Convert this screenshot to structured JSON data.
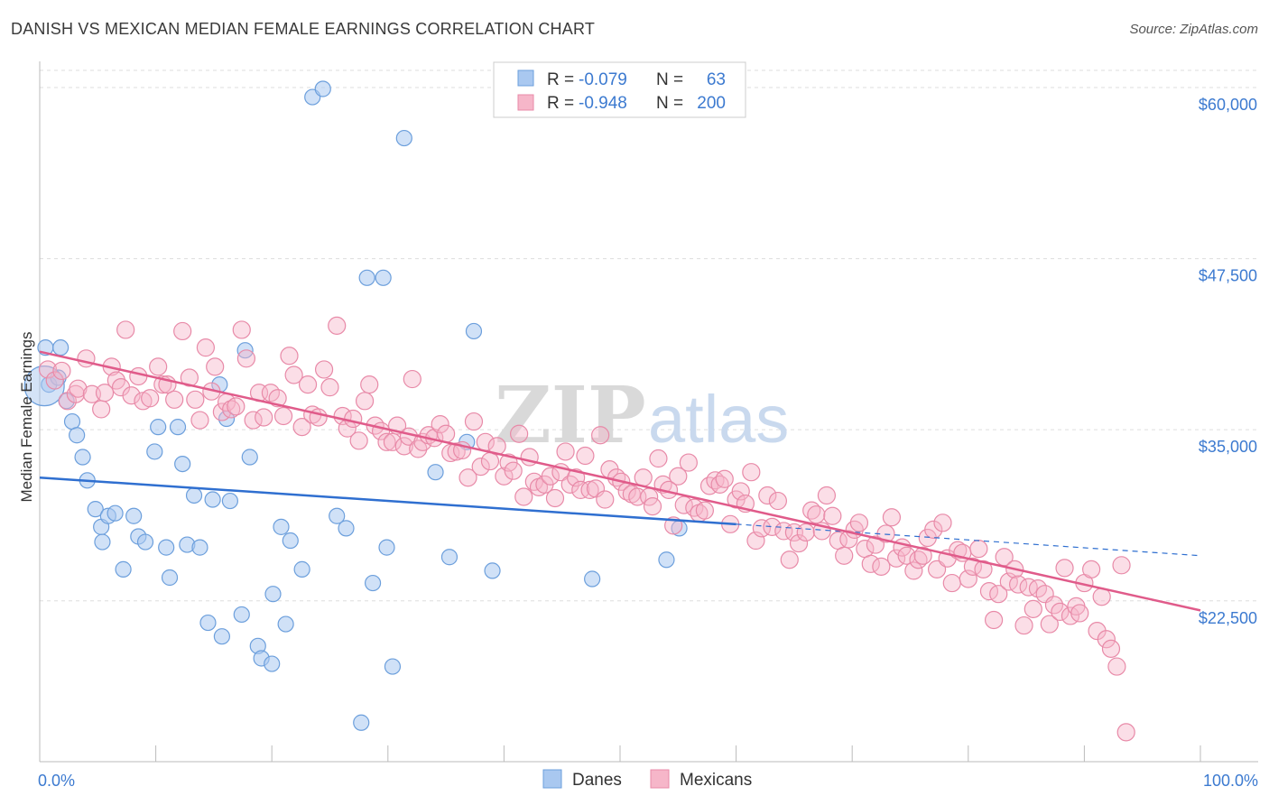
{
  "header": {
    "title": "DANISH VS MEXICAN MEDIAN FEMALE EARNINGS CORRELATION CHART",
    "source": "Source: ZipAtlas.com"
  },
  "watermark": {
    "zip": "ZIP",
    "atlas": "atlas"
  },
  "legend_top": {
    "danes": {
      "r_label": "R =",
      "r_value": "-0.079",
      "n_label": "N =",
      "n_value": "63"
    },
    "mexicans": {
      "r_label": "R =",
      "r_value": "-0.948",
      "n_label": "N =",
      "n_value": "200"
    }
  },
  "legend_bottom": {
    "danes": "Danes",
    "mexicans": "Mexicans"
  },
  "colors": {
    "danes_fill": "#a9c8f0",
    "danes_stroke": "#6c9fdc",
    "danes_line": "#2f6fd0",
    "mexicans_fill": "#f6b6c9",
    "mexicans_stroke": "#e88aa8",
    "mexicans_line": "#e05b8a",
    "tick_text": "#3c7ad0",
    "grid": "#dddddd"
  },
  "chart_data": {
    "type": "scatter",
    "title": "DANISH VS MEXICAN MEDIAN FEMALE EARNINGS CORRELATION CHART",
    "xlabel": "",
    "ylabel": "Median Female Earnings",
    "x_tick_labels": [
      "0.0%",
      "100.0%"
    ],
    "y_tick_labels": [
      "$22,500",
      "$35,000",
      "$47,500",
      "$60,000"
    ],
    "y_ticks": [
      22500,
      35000,
      47500,
      60000
    ],
    "xlim": [
      0,
      100
    ],
    "ylim": [
      10750,
      61250
    ],
    "grid": true,
    "legend_position": "top-center",
    "series": [
      {
        "name": "Danes",
        "trend": {
          "x": [
            0,
            60
          ],
          "y": [
            31500,
            28100
          ],
          "dashed_to": [
            100,
            25800
          ]
        },
        "points": [
          [
            0.5,
            41.0
          ],
          [
            0.8,
            38.3
          ],
          [
            1.8,
            41.0
          ],
          [
            1.6,
            38.8
          ],
          [
            2.3,
            37.1
          ],
          [
            2.8,
            35.6
          ],
          [
            3.2,
            34.6
          ],
          [
            3.7,
            33.0
          ],
          [
            4.1,
            31.3
          ],
          [
            4.8,
            29.2
          ],
          [
            5.3,
            27.9
          ],
          [
            5.4,
            26.8
          ],
          [
            5.9,
            28.7
          ],
          [
            6.5,
            28.9
          ],
          [
            7.2,
            24.8
          ],
          [
            8.1,
            28.7
          ],
          [
            8.5,
            27.2
          ],
          [
            9.1,
            26.8
          ],
          [
            9.9,
            33.4
          ],
          [
            10.2,
            35.2
          ],
          [
            10.9,
            26.4
          ],
          [
            11.2,
            24.2
          ],
          [
            11.9,
            35.2
          ],
          [
            12.3,
            32.5
          ],
          [
            12.7,
            26.6
          ],
          [
            13.3,
            30.2
          ],
          [
            13.8,
            26.4
          ],
          [
            14.5,
            20.9
          ],
          [
            14.9,
            29.9
          ],
          [
            15.5,
            38.3
          ],
          [
            15.7,
            19.9
          ],
          [
            16.1,
            35.8
          ],
          [
            16.4,
            29.8
          ],
          [
            17.4,
            21.5
          ],
          [
            17.7,
            40.8
          ],
          [
            18.1,
            33.0
          ],
          [
            18.8,
            19.2
          ],
          [
            19.1,
            18.3
          ],
          [
            20.0,
            17.9
          ],
          [
            20.1,
            23.0
          ],
          [
            20.8,
            27.9
          ],
          [
            21.2,
            20.8
          ],
          [
            21.6,
            26.9
          ],
          [
            22.6,
            24.8
          ],
          [
            23.5,
            59.3
          ],
          [
            24.4,
            59.9
          ],
          [
            25.6,
            28.7
          ],
          [
            26.4,
            27.8
          ],
          [
            27.7,
            13.6
          ],
          [
            28.2,
            46.1
          ],
          [
            29.6,
            46.1
          ],
          [
            28.7,
            23.8
          ],
          [
            29.9,
            26.4
          ],
          [
            30.4,
            17.7
          ],
          [
            31.4,
            56.3
          ],
          [
            34.1,
            31.9
          ],
          [
            35.3,
            25.7
          ],
          [
            36.8,
            34.1
          ],
          [
            37.4,
            42.2
          ],
          [
            39.0,
            24.7
          ],
          [
            47.6,
            24.1
          ],
          [
            54.0,
            25.5
          ],
          [
            55.1,
            27.8
          ]
        ]
      },
      {
        "name": "Mexicans",
        "trend": {
          "x": [
            0,
            100
          ],
          "y": [
            40700,
            21800
          ]
        },
        "points": [
          [
            0.7,
            39.4
          ],
          [
            1.3,
            38.6
          ],
          [
            1.9,
            39.3
          ],
          [
            2.4,
            37.1
          ],
          [
            3.1,
            37.6
          ],
          [
            3.3,
            38.0
          ],
          [
            4.0,
            40.2
          ],
          [
            4.5,
            37.6
          ],
          [
            5.3,
            36.5
          ],
          [
            5.6,
            37.7
          ],
          [
            6.2,
            39.6
          ],
          [
            6.6,
            38.6
          ],
          [
            7.0,
            38.1
          ],
          [
            7.4,
            42.3
          ],
          [
            7.9,
            37.5
          ],
          [
            8.5,
            38.9
          ],
          [
            8.9,
            37.1
          ],
          [
            9.5,
            37.3
          ],
          [
            10.2,
            39.6
          ],
          [
            10.6,
            38.3
          ],
          [
            11.0,
            38.3
          ],
          [
            11.6,
            37.2
          ],
          [
            12.3,
            42.2
          ],
          [
            12.9,
            38.8
          ],
          [
            13.4,
            37.2
          ],
          [
            13.8,
            35.7
          ],
          [
            14.3,
            41.0
          ],
          [
            14.8,
            37.8
          ],
          [
            15.1,
            39.6
          ],
          [
            15.7,
            36.3
          ],
          [
            16.1,
            37.0
          ],
          [
            16.5,
            36.5
          ],
          [
            16.9,
            36.7
          ],
          [
            17.4,
            42.3
          ],
          [
            17.8,
            40.2
          ],
          [
            18.4,
            35.7
          ],
          [
            18.9,
            37.7
          ],
          [
            19.3,
            35.9
          ],
          [
            19.9,
            37.7
          ],
          [
            20.5,
            37.3
          ],
          [
            21.0,
            36.0
          ],
          [
            21.5,
            40.4
          ],
          [
            21.9,
            39.0
          ],
          [
            22.6,
            35.2
          ],
          [
            23.1,
            38.3
          ],
          [
            23.5,
            36.1
          ],
          [
            24.0,
            35.9
          ],
          [
            24.5,
            39.4
          ],
          [
            25.0,
            38.1
          ],
          [
            25.6,
            42.6
          ],
          [
            26.1,
            36.0
          ],
          [
            26.5,
            35.1
          ],
          [
            27.0,
            35.8
          ],
          [
            27.5,
            34.2
          ],
          [
            28.0,
            37.1
          ],
          [
            28.4,
            38.3
          ],
          [
            28.9,
            35.3
          ],
          [
            29.4,
            34.9
          ],
          [
            29.9,
            34.1
          ],
          [
            30.4,
            34.1
          ],
          [
            30.8,
            35.3
          ],
          [
            31.4,
            33.8
          ],
          [
            31.8,
            34.5
          ],
          [
            32.1,
            38.7
          ],
          [
            32.6,
            33.6
          ],
          [
            33.0,
            34.1
          ],
          [
            33.5,
            34.6
          ],
          [
            34.0,
            34.4
          ],
          [
            34.5,
            35.4
          ],
          [
            35.0,
            34.7
          ],
          [
            35.4,
            33.3
          ],
          [
            35.9,
            33.4
          ],
          [
            36.4,
            33.5
          ],
          [
            36.9,
            31.5
          ],
          [
            37.4,
            35.6
          ],
          [
            38.0,
            32.3
          ],
          [
            38.4,
            34.1
          ],
          [
            38.8,
            32.7
          ],
          [
            39.4,
            33.8
          ],
          [
            40.0,
            31.6
          ],
          [
            40.4,
            32.6
          ],
          [
            40.8,
            32.0
          ],
          [
            41.3,
            34.7
          ],
          [
            41.7,
            30.1
          ],
          [
            42.2,
            33.0
          ],
          [
            42.6,
            31.2
          ],
          [
            43.0,
            30.8
          ],
          [
            43.5,
            31.0
          ],
          [
            44.0,
            31.6
          ],
          [
            44.4,
            30.0
          ],
          [
            44.9,
            31.9
          ],
          [
            45.3,
            33.4
          ],
          [
            45.7,
            31.0
          ],
          [
            46.2,
            31.5
          ],
          [
            46.6,
            30.6
          ],
          [
            47.0,
            33.1
          ],
          [
            47.4,
            30.6
          ],
          [
            47.9,
            30.7
          ],
          [
            48.3,
            34.6
          ],
          [
            48.7,
            29.9
          ],
          [
            49.1,
            32.1
          ],
          [
            49.7,
            31.5
          ],
          [
            50.1,
            31.2
          ],
          [
            50.6,
            30.5
          ],
          [
            51.0,
            30.3
          ],
          [
            51.5,
            30.1
          ],
          [
            52.0,
            31.5
          ],
          [
            52.5,
            30.1
          ],
          [
            52.8,
            29.4
          ],
          [
            53.3,
            32.9
          ],
          [
            53.7,
            31.0
          ],
          [
            54.2,
            30.6
          ],
          [
            54.6,
            28.0
          ],
          [
            55.0,
            31.6
          ],
          [
            55.5,
            29.5
          ],
          [
            55.9,
            32.6
          ],
          [
            56.4,
            29.3
          ],
          [
            56.8,
            28.9
          ],
          [
            57.3,
            29.1
          ],
          [
            57.7,
            30.9
          ],
          [
            58.2,
            31.3
          ],
          [
            58.6,
            31.0
          ],
          [
            59.0,
            31.4
          ],
          [
            59.5,
            28.1
          ],
          [
            60.0,
            29.9
          ],
          [
            60.4,
            30.5
          ],
          [
            60.8,
            29.6
          ],
          [
            61.3,
            31.9
          ],
          [
            61.7,
            26.9
          ],
          [
            62.2,
            27.8
          ],
          [
            62.7,
            30.2
          ],
          [
            63.1,
            27.9
          ],
          [
            63.6,
            29.8
          ],
          [
            64.1,
            27.6
          ],
          [
            64.6,
            25.5
          ],
          [
            65.0,
            27.5
          ],
          [
            65.4,
            26.7
          ],
          [
            66.0,
            27.5
          ],
          [
            66.5,
            29.1
          ],
          [
            66.9,
            28.8
          ],
          [
            67.4,
            27.6
          ],
          [
            67.8,
            30.2
          ],
          [
            68.3,
            28.7
          ],
          [
            68.8,
            26.9
          ],
          [
            69.3,
            25.8
          ],
          [
            69.7,
            27.0
          ],
          [
            70.2,
            27.7
          ],
          [
            70.6,
            28.2
          ],
          [
            71.1,
            26.3
          ],
          [
            71.6,
            25.2
          ],
          [
            72.0,
            26.6
          ],
          [
            72.5,
            25.0
          ],
          [
            72.9,
            27.4
          ],
          [
            73.4,
            28.6
          ],
          [
            73.8,
            25.6
          ],
          [
            74.3,
            26.4
          ],
          [
            74.7,
            25.8
          ],
          [
            75.3,
            24.7
          ],
          [
            75.7,
            25.5
          ],
          [
            76.1,
            25.8
          ],
          [
            76.5,
            27.1
          ],
          [
            77.0,
            27.7
          ],
          [
            77.3,
            24.8
          ],
          [
            77.8,
            28.2
          ],
          [
            78.2,
            25.6
          ],
          [
            78.6,
            23.8
          ],
          [
            79.1,
            26.2
          ],
          [
            79.5,
            26.0
          ],
          [
            80.0,
            24.1
          ],
          [
            80.4,
            25.0
          ],
          [
            80.9,
            26.3
          ],
          [
            81.3,
            24.8
          ],
          [
            81.8,
            23.2
          ],
          [
            82.2,
            21.1
          ],
          [
            82.6,
            23.0
          ],
          [
            83.1,
            25.7
          ],
          [
            83.5,
            23.9
          ],
          [
            84.0,
            24.8
          ],
          [
            84.3,
            23.7
          ],
          [
            84.8,
            20.7
          ],
          [
            85.2,
            23.5
          ],
          [
            85.6,
            21.9
          ],
          [
            86.0,
            23.4
          ],
          [
            86.6,
            23.0
          ],
          [
            87.0,
            20.8
          ],
          [
            87.4,
            22.2
          ],
          [
            87.9,
            21.7
          ],
          [
            88.3,
            24.9
          ],
          [
            88.8,
            21.4
          ],
          [
            89.3,
            22.1
          ],
          [
            89.6,
            21.6
          ],
          [
            90.0,
            23.8
          ],
          [
            90.6,
            24.8
          ],
          [
            91.1,
            20.3
          ],
          [
            91.5,
            22.8
          ],
          [
            91.9,
            19.7
          ],
          [
            92.3,
            19.0
          ],
          [
            92.8,
            17.7
          ],
          [
            93.2,
            25.1
          ],
          [
            93.6,
            12.9
          ]
        ]
      }
    ]
  }
}
